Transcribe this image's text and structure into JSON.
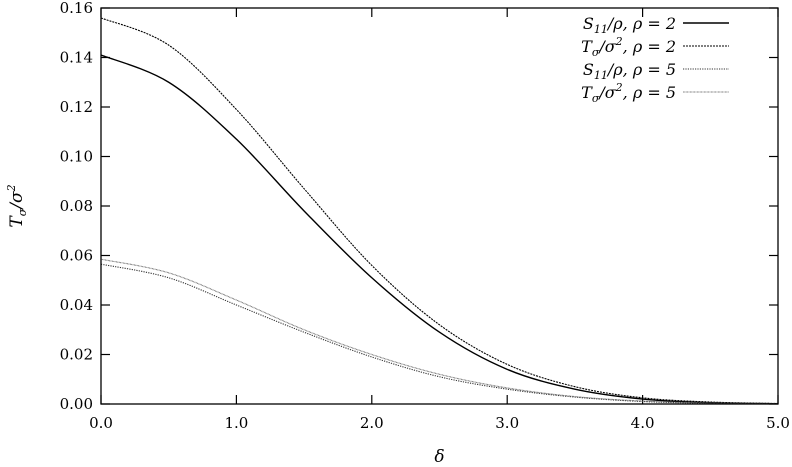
{
  "chart_data": {
    "type": "line",
    "title": "",
    "xlabel": "δ",
    "ylabel": "Tσ/σ²",
    "xlim": [
      0.0,
      5.0
    ],
    "ylim": [
      0.0,
      0.16
    ],
    "xticks": [
      0.0,
      1.0,
      2.0,
      3.0,
      4.0,
      5.0
    ],
    "xtick_labels": [
      "0.0",
      "1.0",
      "2.0",
      "3.0",
      "4.0",
      "5.0"
    ],
    "yticks": [
      0.0,
      0.02,
      0.04,
      0.06,
      0.08,
      0.1,
      0.12,
      0.14,
      0.16
    ],
    "ytick_labels": [
      "0.00",
      "0.02",
      "0.04",
      "0.06",
      "0.08",
      "0.10",
      "0.12",
      "0.14",
      "0.16"
    ],
    "grid": false,
    "legend_position": "top-right",
    "x": [
      0.0,
      0.5,
      1.0,
      1.5,
      2.0,
      2.5,
      3.0,
      3.5,
      4.0,
      4.5,
      5.0
    ],
    "series": [
      {
        "name": "S11/ρ, ρ = 2",
        "style": "solid",
        "color": "#000000",
        "values": [
          0.141,
          0.13,
          0.107,
          0.078,
          0.051,
          0.029,
          0.014,
          0.006,
          0.002,
          0.0005,
          0.0001
        ]
      },
      {
        "name": "Tσ/σ², ρ = 2",
        "style": "dotted-dense",
        "color": "#000000",
        "values": [
          0.156,
          0.145,
          0.119,
          0.087,
          0.056,
          0.032,
          0.016,
          0.007,
          0.0025,
          0.0008,
          0.0002
        ]
      },
      {
        "name": "S11/ρ, ρ = 5",
        "style": "dotted",
        "color": "#333333",
        "values": [
          0.0565,
          0.051,
          0.04,
          0.029,
          0.019,
          0.011,
          0.006,
          0.0028,
          0.001,
          0.0003,
          0.0001
        ]
      },
      {
        "name": "Tσ/σ², ρ = 5",
        "style": "fine",
        "color": "#666666",
        "values": [
          0.0585,
          0.053,
          0.042,
          0.03,
          0.02,
          0.012,
          0.0065,
          0.003,
          0.0012,
          0.0004,
          0.0001
        ]
      }
    ]
  },
  "legend": {
    "entries": [
      {
        "base": "S",
        "sub": "11",
        "tail": "/ρ, ρ = 2"
      },
      {
        "base": "T",
        "sub": "σ",
        "mid": "/σ",
        "sup": "2",
        "tail": ", ρ = 2"
      },
      {
        "base": "S",
        "sub": "11",
        "tail": "/ρ, ρ = 5"
      },
      {
        "base": "T",
        "sub": "σ",
        "mid": "/σ",
        "sup": "2",
        "tail": ", ρ = 5"
      }
    ]
  },
  "axis_text": {
    "x": "δ",
    "y_base": "T",
    "y_sub": "σ",
    "y_mid": "/σ",
    "y_sup": "2"
  }
}
